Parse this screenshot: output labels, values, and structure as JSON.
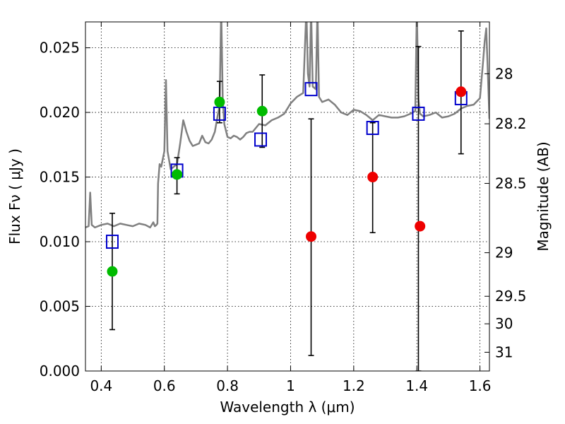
{
  "chart_data": {
    "type": "scatter",
    "xlabel": "Wavelength  λ (μm)",
    "ylabel": "Flux  Fν  ( μJy )",
    "ylabel_right": "Magnitude (AB)",
    "xlim": [
      0.35,
      1.63
    ],
    "ylim": [
      0.0,
      0.027
    ],
    "grid": true,
    "x_ticks": [
      0.4,
      0.6,
      0.8,
      1.0,
      1.2,
      1.4,
      1.6
    ],
    "x_tick_labels": [
      "0.4",
      "0.6",
      "0.8",
      "1",
      "1.2",
      "1.4",
      "1.6"
    ],
    "y_ticks": [
      0.0,
      0.005,
      0.01,
      0.015,
      0.02,
      0.025
    ],
    "y_tick_labels": [
      "0.000",
      "0.005",
      "0.010",
      "0.015",
      "0.020",
      "0.025"
    ],
    "right_ticks": [
      {
        "label": "28",
        "flux": 0.02299
      },
      {
        "label": "28.2",
        "flux": 0.01912
      },
      {
        "label": "28.5",
        "flux": 0.01451
      },
      {
        "label": "29",
        "flux": 0.00915
      },
      {
        "label": "29.5",
        "flux": 0.00578
      },
      {
        "label": "30",
        "flux": 0.00365
      },
      {
        "label": "31",
        "flux": 0.00145
      }
    ],
    "series": [
      {
        "marker": "line",
        "color": "#808080",
        "x": [
          0.35,
          0.36,
          0.365,
          0.37,
          0.38,
          0.4,
          0.42,
          0.44,
          0.46,
          0.48,
          0.5,
          0.52,
          0.54,
          0.555,
          0.565,
          0.57,
          0.575,
          0.578,
          0.58,
          0.585,
          0.59,
          0.6,
          0.605,
          0.61,
          0.62,
          0.63,
          0.64,
          0.65,
          0.66,
          0.67,
          0.68,
          0.69,
          0.7,
          0.71,
          0.72,
          0.73,
          0.74,
          0.75,
          0.76,
          0.77,
          0.775,
          0.78,
          0.785,
          0.79,
          0.8,
          0.81,
          0.82,
          0.83,
          0.84,
          0.85,
          0.86,
          0.87,
          0.88,
          0.89,
          0.9,
          0.92,
          0.94,
          0.96,
          0.98,
          1.0,
          1.02,
          1.04,
          1.05,
          1.055,
          1.06,
          1.065,
          1.07,
          1.08,
          1.085,
          1.09,
          1.1,
          1.12,
          1.14,
          1.16,
          1.18,
          1.2,
          1.22,
          1.24,
          1.26,
          1.28,
          1.3,
          1.32,
          1.34,
          1.36,
          1.38,
          1.395,
          1.4,
          1.405,
          1.41,
          1.42,
          1.44,
          1.46,
          1.48,
          1.5,
          1.52,
          1.54,
          1.56,
          1.58,
          1.6,
          1.61,
          1.615,
          1.62,
          1.625,
          1.63
        ],
        "y": [
          0.0111,
          0.0112,
          0.0138,
          0.0113,
          0.0111,
          0.0113,
          0.0114,
          0.0112,
          0.0114,
          0.0113,
          0.0112,
          0.0114,
          0.0113,
          0.0111,
          0.0115,
          0.0112,
          0.0113,
          0.0114,
          0.0145,
          0.016,
          0.0158,
          0.017,
          0.0225,
          0.017,
          0.0156,
          0.0158,
          0.016,
          0.0176,
          0.0194,
          0.0185,
          0.0178,
          0.0174,
          0.0175,
          0.0176,
          0.0182,
          0.0177,
          0.0176,
          0.0179,
          0.0185,
          0.0199,
          0.0205,
          0.028,
          0.021,
          0.0191,
          0.0181,
          0.018,
          0.0182,
          0.0181,
          0.0179,
          0.0181,
          0.0184,
          0.0185,
          0.0185,
          0.0188,
          0.0191,
          0.019,
          0.0194,
          0.0196,
          0.0199,
          0.0207,
          0.0212,
          0.0215,
          0.028,
          0.023,
          0.022,
          0.028,
          0.022,
          0.0218,
          0.028,
          0.0212,
          0.0208,
          0.021,
          0.0206,
          0.02,
          0.0198,
          0.0202,
          0.0201,
          0.0198,
          0.0194,
          0.0198,
          0.0197,
          0.0196,
          0.0196,
          0.0197,
          0.0199,
          0.0201,
          0.028,
          0.021,
          0.0199,
          0.0197,
          0.0198,
          0.02,
          0.0196,
          0.0197,
          0.0199,
          0.0203,
          0.0205,
          0.0206,
          0.0211,
          0.024,
          0.0255,
          0.0265,
          0.023,
          0.0195
        ]
      },
      {
        "marker": "open-square",
        "color": "#0000cc",
        "x": [
          0.435,
          0.64,
          0.775,
          0.905,
          1.065,
          1.26,
          1.405,
          1.54
        ],
        "y": [
          0.01,
          0.0155,
          0.0199,
          0.0179,
          0.0218,
          0.0188,
          0.0199,
          0.0211
        ]
      },
      {
        "marker": "filled-circle",
        "color": "#00bb00",
        "x": [
          0.435,
          0.64,
          0.775,
          0.91
        ],
        "y": [
          0.0077,
          0.0152,
          0.0208,
          0.0201
        ]
      },
      {
        "marker": "filled-circle",
        "color": "#ee0000",
        "x": [
          1.065,
          1.26,
          1.41,
          1.54
        ],
        "y": [
          0.0104,
          0.015,
          0.0112,
          0.0216
        ]
      },
      {
        "marker": "errorbar",
        "color": "#000000",
        "x": [
          0.435,
          0.64,
          0.775,
          0.91,
          1.065,
          1.26,
          1.405,
          1.54
        ],
        "y_low": [
          0.0032,
          0.0137,
          0.0192,
          0.0173,
          0.0012,
          0.0107,
          0.0,
          0.0168
        ],
        "y_high": [
          0.0122,
          0.0165,
          0.0224,
          0.0229,
          0.0195,
          0.0192,
          0.0251,
          0.0263
        ]
      }
    ]
  }
}
